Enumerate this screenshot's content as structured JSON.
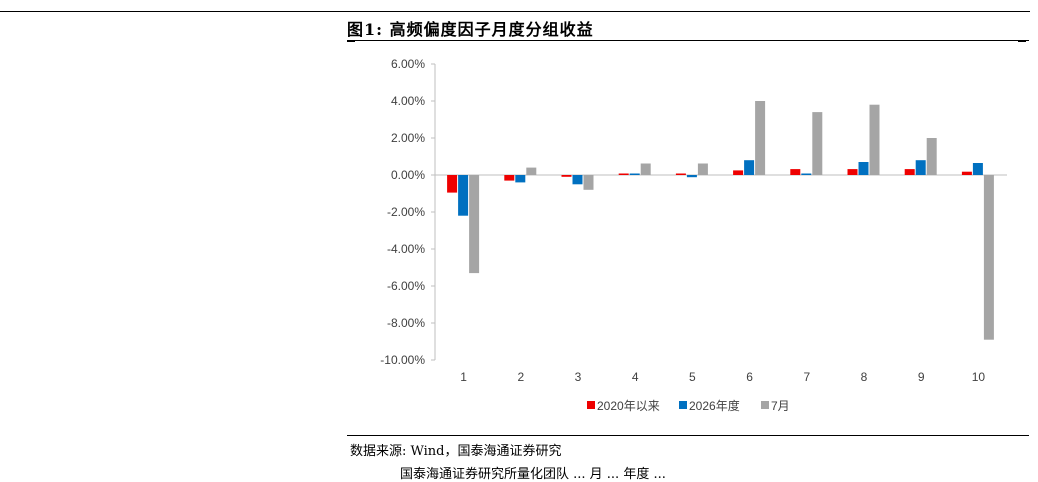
{
  "figure": {
    "title": "图1:  高频偏度因子月度分组收益",
    "source": "数据来源: Wind，国泰海通证券研究",
    "footer_fragment": "国泰海通证券研究所量化团队 ... 月 ... 年度 ..."
  },
  "chart_data": {
    "type": "bar",
    "categories": [
      "1",
      "2",
      "3",
      "4",
      "5",
      "6",
      "7",
      "8",
      "9",
      "10"
    ],
    "series": [
      {
        "name": "2020年以来",
        "color": "#ee0000",
        "values": [
          -0.95,
          -0.3,
          -0.1,
          0.08,
          0.08,
          0.25,
          0.32,
          0.32,
          0.32,
          0.18
        ]
      },
      {
        "name": "2026年度",
        "color": "#0070c0",
        "values": [
          -2.2,
          -0.4,
          -0.5,
          0.08,
          -0.12,
          0.8,
          0.08,
          0.7,
          0.8,
          0.65
        ]
      },
      {
        "name": "7月",
        "color": "#a5a5a5",
        "values": [
          -5.3,
          0.4,
          -0.8,
          0.62,
          0.62,
          4.0,
          3.4,
          3.8,
          2.0,
          -8.9
        ]
      }
    ],
    "ylim": [
      -10,
      6
    ],
    "yticks": [
      6,
      4,
      2,
      0,
      -2,
      -4,
      -6,
      -8,
      -10
    ],
    "ytick_labels": [
      "6.00%",
      "4.00%",
      "2.00%",
      "0.00%",
      "-2.00%",
      "-4.00%",
      "-6.00%",
      "-8.00%",
      "-10.00%"
    ],
    "xlabel": "",
    "ylabel": "",
    "grid": false,
    "legend_position": "bottom"
  }
}
